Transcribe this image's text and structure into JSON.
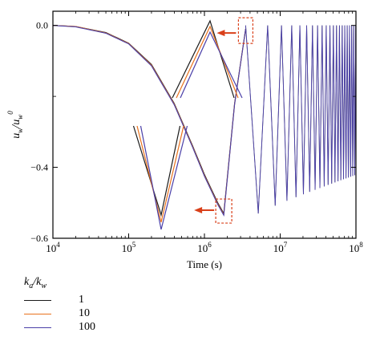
{
  "chart_data": {
    "type": "line",
    "title": "",
    "xlabel": "Time (s)",
    "ylabel_parts": {
      "base": "u",
      "sub": "w",
      "slash": "/",
      "base2": "u",
      "sub2": "w",
      "sup2": "0"
    },
    "xscale": "log",
    "xlim": [
      10000,
      100000000
    ],
    "ylim": [
      -0.6,
      0.04
    ],
    "xticks": [
      {
        "value": 10000,
        "base": "10",
        "exp": "4"
      },
      {
        "value": 100000,
        "base": "10",
        "exp": "5"
      },
      {
        "value": 1000000,
        "base": "10",
        "exp": "6"
      },
      {
        "value": 10000000,
        "base": "10",
        "exp": "7"
      },
      {
        "value": 100000000,
        "base": "10",
        "exp": "8"
      }
    ],
    "yticks": [
      {
        "value": 0.0,
        "label": "0.0"
      },
      {
        "value": -0.4,
        "label": "−0.4"
      },
      {
        "value": -0.6,
        "label": "−0.6"
      }
    ],
    "grid": false,
    "legend": {
      "position": "below-left",
      "title_parts": {
        "a": "k",
        "a_sub": "a",
        "slash": "/",
        "b": "k",
        "b_sub": "w"
      },
      "entries": [
        {
          "label": "1",
          "color": "#1a1a1a"
        },
        {
          "label": "10",
          "color": "#e8721e"
        },
        {
          "label": "100",
          "color": "#4a3fa8"
        }
      ]
    },
    "series": [
      {
        "name": "1",
        "color": "#1a1a1a",
        "x": [
          10000,
          20000,
          50000,
          100000,
          200000,
          400000,
          700000,
          1000000,
          1500000,
          1800000,
          2500000,
          3500000
        ],
        "y": [
          0.0,
          -0.003,
          -0.02,
          -0.05,
          -0.11,
          -0.22,
          -0.34,
          -0.42,
          -0.5,
          -0.53,
          -0.22,
          -0.01
        ]
      },
      {
        "name": "10",
        "color": "#e8721e",
        "x": [
          10000,
          20000,
          50000,
          100000,
          200000,
          400000,
          700000,
          1000000,
          1500000,
          1800000,
          2500000,
          3500000
        ],
        "y": [
          0.0,
          -0.003,
          -0.021,
          -0.051,
          -0.112,
          -0.222,
          -0.342,
          -0.423,
          -0.503,
          -0.533,
          -0.222,
          -0.01
        ]
      },
      {
        "name": "100",
        "color": "#4a3fa8",
        "x": [
          10000,
          20000,
          50000,
          100000,
          200000,
          400000,
          700000,
          1000000,
          1500000,
          1800000,
          2500000,
          3500000
        ],
        "y": [
          0.0,
          -0.004,
          -0.022,
          -0.052,
          -0.114,
          -0.224,
          -0.344,
          -0.425,
          -0.505,
          -0.535,
          -0.223,
          -0.01
        ]
      }
    ],
    "oscillation": {
      "description_free": true,
      "start_x": 3500000,
      "end_x": 100000000,
      "upper_y": -0.0,
      "lower_y_start": -0.53,
      "lower_y_end": -0.42,
      "cycles_per_decade_start": 3,
      "cycles_per_decade_end": 40
    },
    "annotations": {
      "highlight_color": "#d9401a",
      "max_peak": {
        "x": 3500000,
        "y": -0.01
      },
      "min_trough": {
        "x": 1800000,
        "y": -0.53
      }
    }
  }
}
